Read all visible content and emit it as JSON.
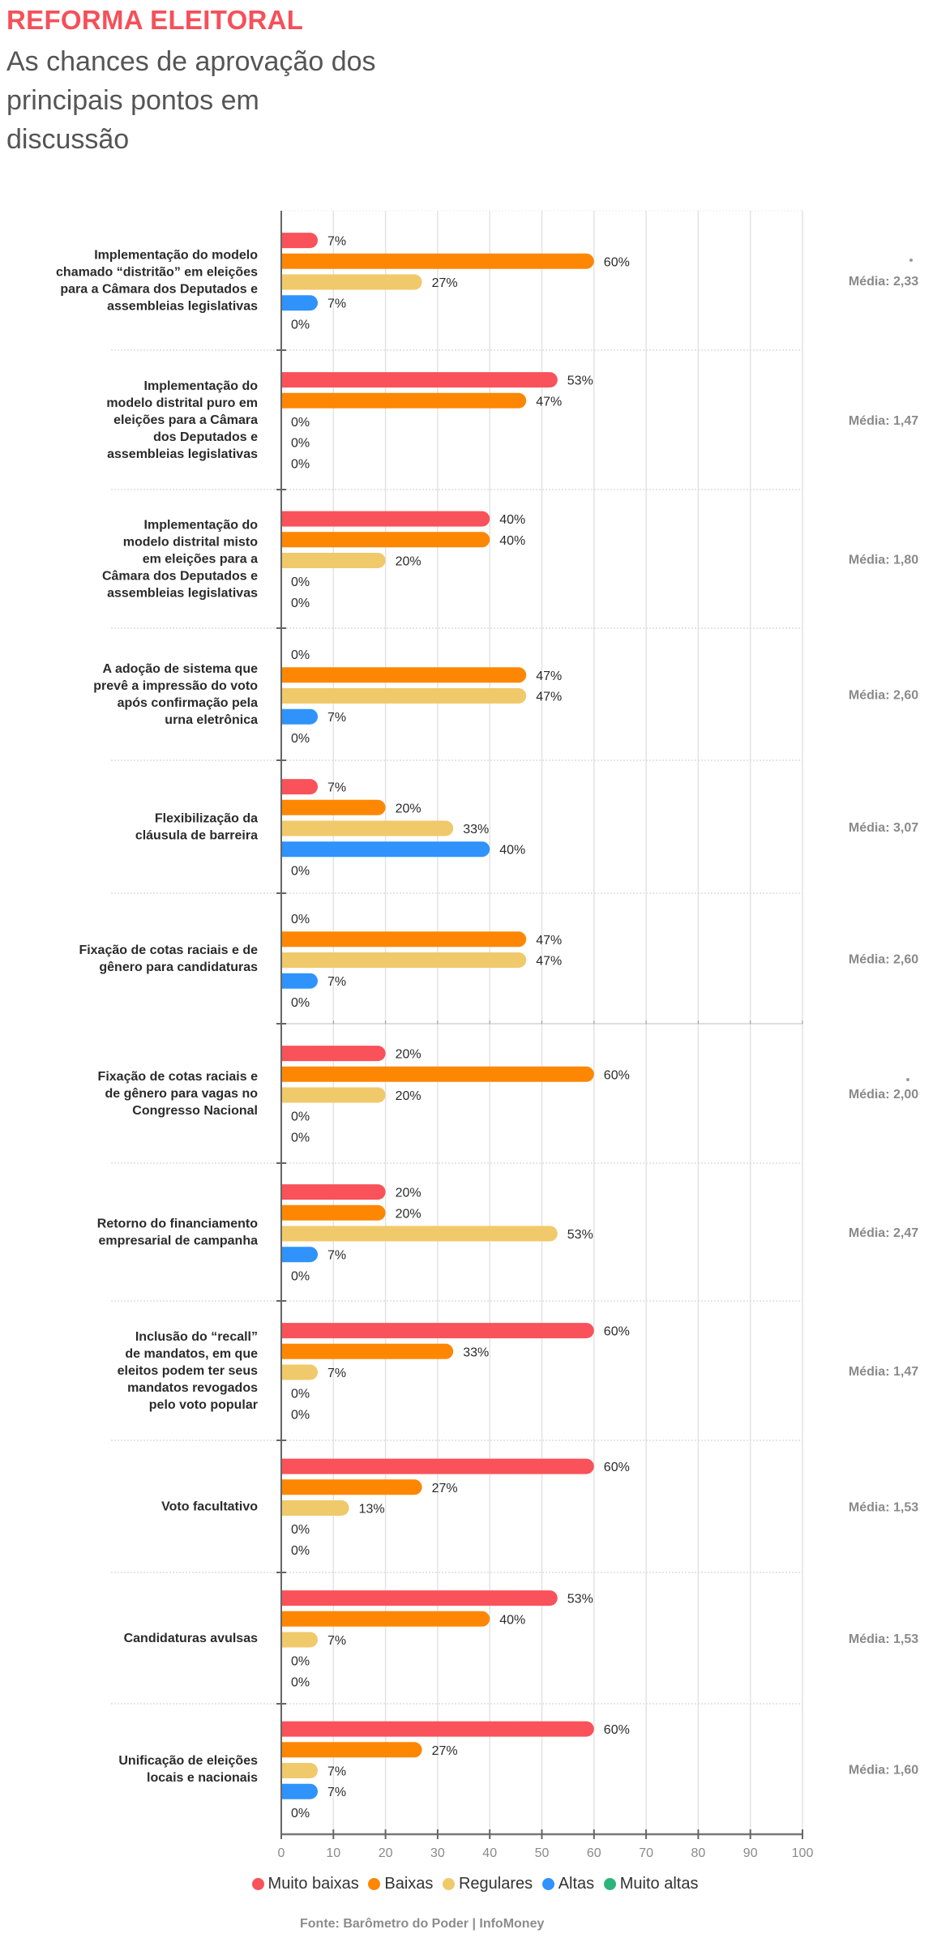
{
  "header": {
    "title": "REFORMA ELEITORAL",
    "subtitle": "As chances de aprovação dos principais pontos em discussão"
  },
  "colors": {
    "title": "#f5505a",
    "muito_baixas": "#f9525a",
    "baixas": "#fd8703",
    "regulares": "#f0c96a",
    "altas": "#2f93fb",
    "muito_altas": "#2bb57b"
  },
  "chart_data": {
    "type": "bar",
    "orientation": "horizontal",
    "title": "REFORMA ELEITORAL",
    "subtitle": "As chances de aprovação dos principais pontos em discussão",
    "xlabel": "",
    "ylabel": "",
    "xlim": [
      0,
      100
    ],
    "xticks": [
      "0",
      "10",
      "20",
      "30",
      "40",
      "50",
      "60",
      "70",
      "80",
      "90",
      "100"
    ],
    "grid": true,
    "legend_position": "bottom",
    "value_suffix": "%",
    "series_names": [
      "Muito baixas",
      "Baixas",
      "Regulares",
      "Altas",
      "Muito altas"
    ],
    "categories": [
      {
        "label": [
          "Implementação do modelo",
          "chamado “distritão” em eleições",
          "para a Câmara dos Deputados e",
          "assembleias legislativas"
        ],
        "values": [
          7,
          60,
          27,
          7,
          0
        ],
        "media": "Média: 2,33"
      },
      {
        "label": [
          "Implementação do",
          "modelo distrital puro em",
          "eleições para a Câmara",
          "dos Deputados e",
          "assembleias legislativas"
        ],
        "values": [
          53,
          47,
          0,
          0,
          0
        ],
        "media": "Média: 1,47"
      },
      {
        "label": [
          "Implementação do",
          "modelo distrital misto",
          "em eleições para a",
          "Câmara dos Deputados e",
          "assembleias legislativas"
        ],
        "values": [
          40,
          40,
          20,
          0,
          0
        ],
        "media": "Média: 1,80"
      },
      {
        "label": [
          "A adoção de sistema que",
          "prevê a impressão do voto",
          "após confirmação pela",
          "urna eletrônica"
        ],
        "values": [
          0,
          47,
          47,
          7,
          0
        ],
        "media": "Média: 2,60"
      },
      {
        "label": [
          "Flexibilização da",
          "cláusula de barreira"
        ],
        "values": [
          7,
          20,
          33,
          40,
          0
        ],
        "media": "Média: 3,07"
      },
      {
        "label": [
          "Fixação de cotas raciais e de",
          "gênero para candidaturas"
        ],
        "values": [
          0,
          47,
          47,
          7,
          0
        ],
        "media": "Média: 2,60"
      },
      {
        "label": [
          "Fixação de cotas raciais e",
          "de gênero para vagas no",
          "Congresso Nacional"
        ],
        "values": [
          20,
          60,
          20,
          0,
          0
        ],
        "media": "Média: 2,00"
      },
      {
        "label": [
          "Retorno do financiamento",
          "empresarial de campanha"
        ],
        "values": [
          20,
          20,
          53,
          7,
          0
        ],
        "media": "Média: 2,47"
      },
      {
        "label": [
          "Inclusão do “recall”",
          "de mandatos, em que",
          "eleitos podem ter seus",
          "mandatos revogados",
          "pelo voto popular"
        ],
        "values": [
          60,
          33,
          7,
          0,
          0
        ],
        "media": "Média: 1,47"
      },
      {
        "label": [
          "Voto facultativo"
        ],
        "values": [
          60,
          27,
          13,
          0,
          0
        ],
        "media": "Média: 1,53"
      },
      {
        "label": [
          "Candidaturas avulsas"
        ],
        "values": [
          53,
          40,
          7,
          0,
          0
        ],
        "media": "Média: 1,53"
      },
      {
        "label": [
          "Unificação de eleições",
          "locais e nacionais"
        ],
        "values": [
          60,
          27,
          7,
          7,
          0
        ],
        "media": "Média: 1,60"
      }
    ]
  },
  "legend": {
    "items": [
      {
        "label": "Muito baixas",
        "color": "#f9525a"
      },
      {
        "label": "Baixas",
        "color": "#fd8703"
      },
      {
        "label": "Regulares",
        "color": "#f0c96a"
      },
      {
        "label": "Altas",
        "color": "#2f93fb"
      },
      {
        "label": "Muito altas",
        "color": "#2bb57b"
      }
    ]
  },
  "footer": {
    "source": "Fonte: Barômetro do Poder | InfoMoney"
  }
}
